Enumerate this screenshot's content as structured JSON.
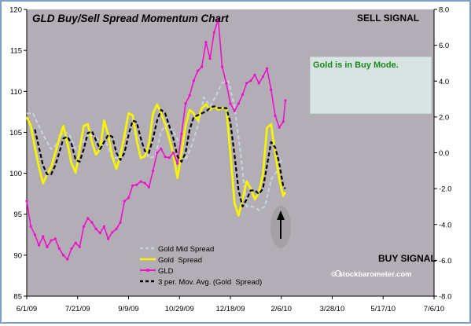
{
  "chart_data": {
    "type": "line",
    "title": "GLD Buy/Sell Spread Momentum Chart",
    "sell_signal_label": "SELL SIGNAL",
    "buy_signal_label": "BUY SIGNAL",
    "mode_box_text": "Gold is in Buy Mode.",
    "watermark": "© stockbarometer.com",
    "x_tick_labels": [
      "6/1/09",
      "7/21/09",
      "9/9/09",
      "10/29/09",
      "12/18/09",
      "2/6/10",
      "3/28/10",
      "5/17/10",
      "7/6/10"
    ],
    "x_range": [
      "2009-06-01",
      "2010-07-06"
    ],
    "y_left_range": [
      85,
      120
    ],
    "y_left_ticks": [
      85,
      90,
      95,
      100,
      105,
      110,
      115,
      120
    ],
    "y_right_range": [
      -8,
      8
    ],
    "y_right_ticks": [
      "-8.0",
      "-6.0",
      "-4.0",
      "-2.0",
      "0.0",
      "2.0",
      "4.0",
      "6.0",
      "8.0"
    ],
    "grid": false,
    "legend_position": "bottom-center",
    "colors": {
      "plot_bg": "#b3adb5",
      "mid_spread": "#c8d0dc",
      "gold_spread": "#f5f500",
      "gld": "#ee10cc",
      "moving_avg": "#000000",
      "mode_box": "#d8e3e3",
      "mode_text": "#1a8a1a"
    },
    "series": [
      {
        "name": "Gold Mid Spread",
        "axis": "right",
        "dates": [
          "2009-06-01",
          "2009-06-07",
          "2009-06-13",
          "2009-06-19",
          "2009-06-25",
          "2009-07-01",
          "2009-07-07",
          "2009-07-13",
          "2009-07-19",
          "2009-07-25",
          "2009-07-31",
          "2009-08-06",
          "2009-08-12",
          "2009-08-18",
          "2009-08-24",
          "2009-08-30",
          "2009-09-05",
          "2009-09-11",
          "2009-09-17",
          "2009-09-23",
          "2009-09-29",
          "2009-10-05",
          "2009-10-11",
          "2009-10-17",
          "2009-10-23",
          "2009-10-29",
          "2009-11-04",
          "2009-11-10",
          "2009-11-16",
          "2009-11-22",
          "2009-11-28",
          "2009-12-04",
          "2009-12-10",
          "2009-12-16",
          "2009-12-22",
          "2009-12-28",
          "2010-01-03",
          "2010-01-09",
          "2010-01-15",
          "2010-01-21",
          "2010-01-27",
          "2010-02-02",
          "2010-02-06"
        ],
        "values": [
          2.2,
          2.2,
          1.5,
          0.8,
          0.2,
          0.5,
          1.2,
          1.0,
          0.2,
          0.5,
          1.0,
          1.0,
          0.6,
          0.6,
          -0.3,
          -0.3,
          0.8,
          1.2,
          1.0,
          0.5,
          -0.3,
          -0.2,
          1.2,
          1.6,
          1.2,
          0.5,
          -0.4,
          0.4,
          1.5,
          3.1,
          2.6,
          3.2,
          3.9,
          4.0,
          2.6,
          0.0,
          -3.0,
          -3.0,
          -3.2,
          -3.0,
          -1.5,
          -1.0,
          -0.4
        ]
      },
      {
        "name": "Gold  Spread",
        "axis": "right",
        "dates": [
          "2009-06-01",
          "2009-06-05",
          "2009-06-09",
          "2009-06-13",
          "2009-06-17",
          "2009-06-21",
          "2009-06-25",
          "2009-06-29",
          "2009-07-03",
          "2009-07-07",
          "2009-07-11",
          "2009-07-15",
          "2009-07-19",
          "2009-07-23",
          "2009-07-27",
          "2009-07-31",
          "2009-08-04",
          "2009-08-08",
          "2009-08-12",
          "2009-08-16",
          "2009-08-20",
          "2009-08-24",
          "2009-08-28",
          "2009-09-01",
          "2009-09-05",
          "2009-09-09",
          "2009-09-13",
          "2009-09-17",
          "2009-09-21",
          "2009-09-25",
          "2009-09-29",
          "2009-10-03",
          "2009-10-07",
          "2009-10-11",
          "2009-10-15",
          "2009-10-19",
          "2009-10-23",
          "2009-10-27",
          "2009-10-31",
          "2009-11-04",
          "2009-11-08",
          "2009-11-12",
          "2009-11-16",
          "2009-11-20",
          "2009-11-24",
          "2009-11-28",
          "2009-12-02",
          "2009-12-06",
          "2009-12-10",
          "2009-12-14",
          "2009-12-18",
          "2009-12-22",
          "2009-12-26",
          "2009-12-30",
          "2010-01-03",
          "2010-01-07",
          "2010-01-11",
          "2010-01-15",
          "2010-01-19",
          "2010-01-23",
          "2010-01-27",
          "2010-01-31",
          "2010-02-04",
          "2010-02-08",
          "2010-02-10"
        ],
        "values": [
          2.0,
          1.5,
          0.3,
          -0.8,
          -1.7,
          -1.2,
          -0.8,
          0.0,
          0.8,
          1.5,
          0.5,
          -0.6,
          -1.1,
          0.2,
          1.5,
          1.6,
          0.6,
          -0.1,
          0.2,
          1.8,
          1.0,
          -0.2,
          -0.9,
          -0.2,
          1.0,
          2.2,
          2.1,
          0.7,
          -0.3,
          -0.2,
          0.5,
          2.2,
          2.7,
          2.2,
          1.6,
          0.8,
          -0.1,
          -1.4,
          0.0,
          1.5,
          2.4,
          2.2,
          1.8,
          2.5,
          2.7,
          2.4,
          2.6,
          2.4,
          2.5,
          2.5,
          0.0,
          -2.8,
          -3.5,
          -2.6,
          -1.6,
          -2.0,
          -2.6,
          -2.2,
          -1.2,
          1.4,
          1.6,
          0.0,
          -1.5,
          -2.4,
          -2.2
        ]
      },
      {
        "name": "GLD",
        "axis": "left",
        "dates": [
          "2009-06-01",
          "2009-06-05",
          "2009-06-09",
          "2009-06-13",
          "2009-06-17",
          "2009-06-21",
          "2009-06-25",
          "2009-06-29",
          "2009-07-03",
          "2009-07-07",
          "2009-07-11",
          "2009-07-15",
          "2009-07-19",
          "2009-07-23",
          "2009-07-27",
          "2009-07-31",
          "2009-08-04",
          "2009-08-08",
          "2009-08-12",
          "2009-08-16",
          "2009-08-20",
          "2009-08-24",
          "2009-08-28",
          "2009-09-01",
          "2009-09-05",
          "2009-09-09",
          "2009-09-13",
          "2009-09-17",
          "2009-09-21",
          "2009-09-25",
          "2009-09-29",
          "2009-10-03",
          "2009-10-07",
          "2009-10-11",
          "2009-10-15",
          "2009-10-19",
          "2009-10-23",
          "2009-10-27",
          "2009-10-31",
          "2009-11-04",
          "2009-11-08",
          "2009-11-12",
          "2009-11-16",
          "2009-11-20",
          "2009-11-24",
          "2009-11-28",
          "2009-12-02",
          "2009-12-06",
          "2009-12-10",
          "2009-12-14",
          "2009-12-18",
          "2009-12-22",
          "2009-12-26",
          "2009-12-30",
          "2010-01-03",
          "2010-01-07",
          "2010-01-11",
          "2010-01-15",
          "2010-01-19",
          "2010-01-23",
          "2010-01-27",
          "2010-01-31",
          "2010-02-04",
          "2010-02-08",
          "2010-02-10"
        ],
        "values": [
          96.6,
          93.5,
          92.5,
          91.2,
          92.3,
          91.0,
          91.8,
          92.0,
          90.8,
          90.0,
          89.5,
          90.8,
          91.5,
          91.0,
          93.5,
          94.5,
          94.0,
          93.2,
          92.7,
          93.5,
          92.0,
          92.8,
          93.2,
          94.0,
          96.6,
          97.0,
          98.5,
          98.6,
          99.0,
          98.8,
          98.3,
          100.3,
          102.5,
          103.0,
          102.0,
          101.9,
          102.5,
          101.2,
          104.8,
          108.5,
          109.5,
          111.3,
          112.5,
          113.0,
          116.0,
          114.0,
          117.2,
          118.8,
          113.0,
          111.0,
          108.5,
          107.6,
          108.5,
          109.6,
          111.0,
          111.3,
          112.0,
          111.0,
          111.8,
          112.8,
          110.2,
          107.0,
          105.6,
          106.3,
          108.9
        ]
      },
      {
        "name": "3 per. Mov. Avg. (Gold  Spread)",
        "axis": "right",
        "dates": [
          "2009-06-09",
          "2009-06-13",
          "2009-06-17",
          "2009-06-21",
          "2009-06-25",
          "2009-06-29",
          "2009-07-03",
          "2009-07-07",
          "2009-07-11",
          "2009-07-15",
          "2009-07-19",
          "2009-07-23",
          "2009-07-27",
          "2009-07-31",
          "2009-08-04",
          "2009-08-08",
          "2009-08-12",
          "2009-08-16",
          "2009-08-20",
          "2009-08-24",
          "2009-08-28",
          "2009-09-01",
          "2009-09-05",
          "2009-09-09",
          "2009-09-13",
          "2009-09-17",
          "2009-09-21",
          "2009-09-25",
          "2009-09-29",
          "2009-10-03",
          "2009-10-07",
          "2009-10-11",
          "2009-10-15",
          "2009-10-19",
          "2009-10-23",
          "2009-10-27",
          "2009-10-31",
          "2009-11-04",
          "2009-11-08",
          "2009-11-12",
          "2009-11-16",
          "2009-11-20",
          "2009-11-24",
          "2009-11-28",
          "2009-12-02",
          "2009-12-06",
          "2009-12-10",
          "2009-12-14",
          "2009-12-18",
          "2009-12-22",
          "2009-12-26",
          "2009-12-30",
          "2010-01-03",
          "2010-01-07",
          "2010-01-11",
          "2010-01-15",
          "2010-01-19",
          "2010-01-23",
          "2010-01-27",
          "2010-01-31",
          "2010-02-04",
          "2010-02-08",
          "2010-02-10"
        ],
        "values": [
          1.3,
          0.3,
          -0.7,
          -1.2,
          -1.2,
          -0.7,
          0.0,
          0.8,
          0.9,
          0.5,
          -0.4,
          -0.5,
          0.2,
          1.1,
          1.2,
          0.7,
          0.2,
          0.6,
          1.0,
          0.9,
          0.0,
          -0.4,
          0.0,
          1.0,
          1.8,
          1.7,
          0.8,
          0.1,
          0.0,
          0.8,
          1.8,
          2.4,
          2.2,
          1.5,
          0.8,
          -0.2,
          -0.5,
          0.0,
          1.3,
          2.0,
          2.1,
          2.2,
          2.3,
          2.5,
          2.6,
          2.5,
          2.5,
          2.5,
          1.7,
          -0.1,
          -2.1,
          -3.0,
          -2.6,
          -2.1,
          -2.1,
          -2.3,
          -2.0,
          -0.7,
          0.6,
          0.3,
          -0.6,
          -1.9,
          -2.0
        ]
      }
    ]
  }
}
